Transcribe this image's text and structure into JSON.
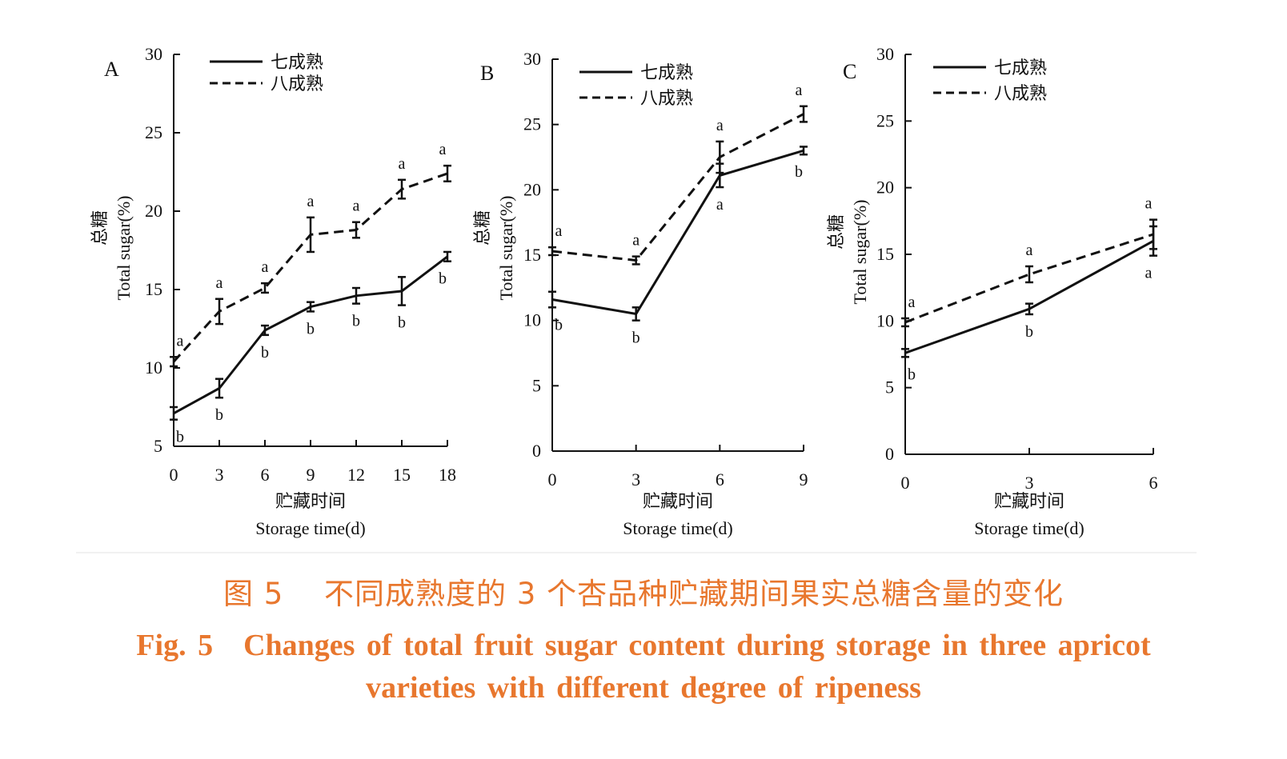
{
  "chart_data": [
    {
      "panel": "A",
      "type": "line",
      "x": [
        0,
        3,
        6,
        9,
        12,
        15,
        18
      ],
      "xlim": [
        0,
        18
      ],
      "ylim": [
        5,
        30
      ],
      "xticks": [
        0,
        3,
        6,
        9,
        12,
        15,
        18
      ],
      "yticks": [
        5,
        10,
        15,
        20,
        25,
        30
      ],
      "ylabel_zh": "总糖",
      "ylabel": "Total sugar(%)",
      "xlabel_zh": "贮藏时间",
      "xlabel": "Storage time(d)",
      "legend_position": "top-left",
      "series": [
        {
          "name": "七成熟",
          "style": "solid",
          "values": [
            7.1,
            8.7,
            12.4,
            13.9,
            14.6,
            14.9,
            17.1
          ],
          "errors": [
            0.4,
            0.6,
            0.3,
            0.3,
            0.5,
            0.9,
            0.3
          ],
          "letters": [
            "b",
            "b",
            "b",
            "b",
            "b",
            "b",
            "b"
          ]
        },
        {
          "name": "八成熟",
          "style": "dashed",
          "values": [
            10.4,
            13.6,
            15.1,
            18.5,
            18.8,
            21.4,
            22.4
          ],
          "errors": [
            0.3,
            0.8,
            0.3,
            1.1,
            0.5,
            0.6,
            0.5
          ],
          "letters": [
            "a",
            "a",
            "a",
            "a",
            "a",
            "a",
            "a"
          ]
        }
      ]
    },
    {
      "panel": "B",
      "type": "line",
      "x": [
        0,
        3,
        6,
        9
      ],
      "xlim": [
        0,
        9
      ],
      "ylim": [
        0,
        30
      ],
      "xticks": [
        0,
        3,
        6,
        9
      ],
      "yticks": [
        0,
        5,
        10,
        15,
        20,
        25,
        30
      ],
      "ylabel_zh": "总糖",
      "ylabel": "Total sugar(%)",
      "xlabel_zh": "贮藏时间",
      "xlabel": "Storage time(d)",
      "legend_position": "top-left",
      "series": [
        {
          "name": "七成熟",
          "style": "solid",
          "values": [
            11.6,
            10.5,
            21.1,
            23.0
          ],
          "errors": [
            0.6,
            0.5,
            0.9,
            0.3
          ],
          "letters": [
            "b",
            "b",
            "a",
            "b"
          ]
        },
        {
          "name": "八成熟",
          "style": "dashed",
          "values": [
            15.3,
            14.6,
            22.5,
            25.8
          ],
          "errors": [
            0.3,
            0.3,
            1.2,
            0.6
          ],
          "letters": [
            "a",
            "a",
            "a",
            "a"
          ]
        }
      ]
    },
    {
      "panel": "C",
      "type": "line",
      "x": [
        0,
        3,
        6
      ],
      "xlim": [
        0,
        6
      ],
      "ylim": [
        0,
        30
      ],
      "xticks": [
        0,
        3,
        6
      ],
      "yticks": [
        0,
        5,
        10,
        15,
        20,
        25,
        30
      ],
      "ylabel_zh": "总糖",
      "ylabel": "Total sugar(%)",
      "xlabel_zh": "贮藏时间",
      "xlabel": "Storage time(d)",
      "legend_position": "top-left",
      "series": [
        {
          "name": "七成熟",
          "style": "solid",
          "values": [
            7.6,
            10.9,
            16.0
          ],
          "errors": [
            0.3,
            0.4,
            1.1
          ],
          "letters": [
            "b",
            "b",
            "a"
          ]
        },
        {
          "name": "八成熟",
          "style": "dashed",
          "values": [
            9.9,
            13.5,
            16.5
          ],
          "errors": [
            0.3,
            0.6,
            1.1
          ],
          "letters": [
            "a",
            "a",
            "a"
          ]
        }
      ]
    }
  ],
  "caption": {
    "zh": "图 5　 不同成熟度的 3 个杏品种贮藏期间果实总糖含量的变化",
    "en_line1": "Fig. 5　Changes of total fruit sugar content during storage in three apricot",
    "en_line2": "varieties with different degree of ripeness"
  },
  "colors": {
    "caption": "#e8772e",
    "lines": "#111111"
  }
}
